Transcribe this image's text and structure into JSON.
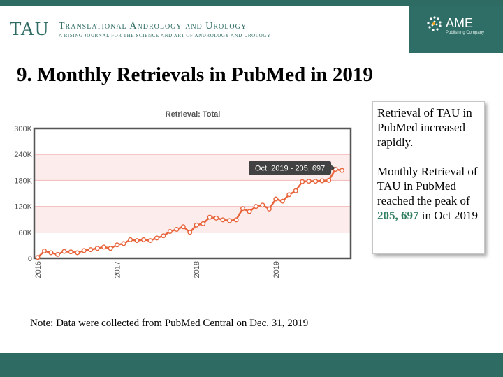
{
  "header": {
    "logo_text": "TAU",
    "journal_name": "Translational Andrology and Urology",
    "journal_tagline": "A RISING JOURNAL FOR THE SCIENCE AND ART OF ANDROLOGY AND UROLOGY",
    "publisher_name": "AME",
    "publisher_subtitle": "Publishing Company",
    "colors": {
      "band": "#2d6b63",
      "logo_text": "#2d6b63",
      "publisher_panel": "#2f6e66"
    }
  },
  "slide": {
    "title": "9.  Monthly Retrievals in PubMed in 2019"
  },
  "callout": {
    "paragraph1": "Retrieval of TAU in PubMed increased rapidly.",
    "paragraph2_prefix": "Monthly Retrieval of TAU in PubMed reached the peak of ",
    "paragraph2_peak": "205, 697",
    "paragraph2_suffix": " in Oct 2019",
    "peak_color": "#2f7f60"
  },
  "note": "Note: Data were collected from PubMed Central on Dec. 31, 2019",
  "chart_data": {
    "type": "line",
    "title": "Retrieval: Total",
    "xlabel": "",
    "ylabel": "",
    "x_tick_labels": [
      "2016",
      "2017",
      "2018",
      "2019"
    ],
    "y_tick_labels": [
      "0",
      "60K",
      "120K",
      "180K",
      "240K",
      "300K"
    ],
    "ylim": [
      0,
      300000
    ],
    "xlim": [
      2016.0,
      2019.9167
    ],
    "grid": true,
    "band_color": "#fdecec",
    "line_color": "#e8643b",
    "tooltip": {
      "text": "Oct. 2019 - 205, 697",
      "x": 2019.75,
      "y": 205697
    },
    "series": [
      {
        "x": [
          2016.0,
          2016.0833,
          2016.1667,
          2016.25,
          2016.3333,
          2016.4167,
          2016.5,
          2016.5833,
          2016.6667,
          2016.75,
          2016.8333,
          2016.9167,
          2017.0,
          2017.0833,
          2017.1667,
          2017.25,
          2017.3333,
          2017.4167,
          2017.5,
          2017.5833,
          2017.6667,
          2017.75,
          2017.8333,
          2017.9167,
          2018.0,
          2018.0833,
          2018.1667,
          2018.25,
          2018.3333,
          2018.4167,
          2018.5,
          2018.5833,
          2018.6667,
          2018.75,
          2018.8333,
          2018.9167,
          2019.0,
          2019.0833,
          2019.1667,
          2019.25,
          2019.3333,
          2019.4167,
          2019.5,
          2019.5833,
          2019.6667,
          2019.75,
          2019.8333
        ],
        "values": [
          2000,
          17000,
          13000,
          9000,
          16000,
          15000,
          13000,
          18000,
          20000,
          23000,
          26000,
          23000,
          31000,
          34000,
          43000,
          41000,
          43000,
          41000,
          47000,
          52000,
          62000,
          67000,
          73000,
          60000,
          77000,
          80000,
          95000,
          93000,
          89000,
          87000,
          89000,
          115000,
          108000,
          120000,
          123000,
          114000,
          137000,
          132000,
          147000,
          156000,
          177000,
          178000,
          178000,
          179000,
          180000,
          205697,
          203000
        ]
      }
    ]
  }
}
